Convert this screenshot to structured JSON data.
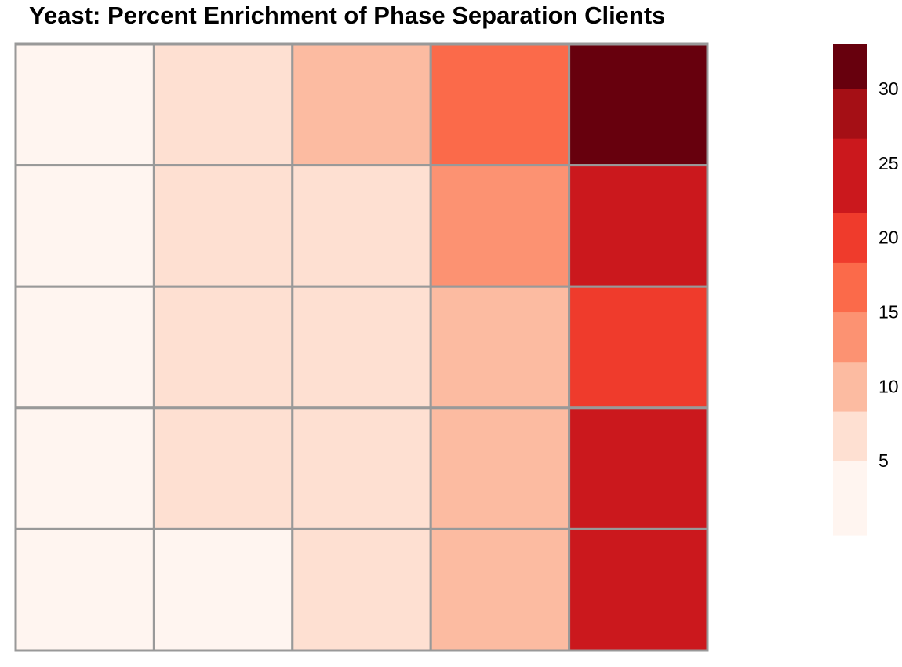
{
  "chart_data": {
    "type": "heatmap",
    "title": "Yeast: Percent Enrichment of Phase Separation Clients",
    "rows": 5,
    "cols": 5,
    "values": [
      [
        1,
        5,
        10,
        17,
        32
      ],
      [
        1,
        5,
        5,
        14,
        25
      ],
      [
        1,
        5,
        5,
        10,
        21
      ],
      [
        1,
        5,
        5,
        10,
        25
      ],
      [
        1,
        1,
        5,
        10,
        25
      ]
    ],
    "color_range": [
      0,
      33
    ],
    "legend": {
      "position": "right",
      "bins": [
        {
          "min": 0,
          "max": 5,
          "color": "#FFF5F0"
        },
        {
          "min": 5,
          "max": 8.33,
          "color": "#FEE0D2"
        },
        {
          "min": 8.33,
          "max": 11.67,
          "color": "#FCBBA1"
        },
        {
          "min": 11.67,
          "max": 15,
          "color": "#FC9272"
        },
        {
          "min": 15,
          "max": 18.33,
          "color": "#FB6A4A"
        },
        {
          "min": 18.33,
          "max": 21.67,
          "color": "#EF3B2C"
        },
        {
          "min": 21.67,
          "max": 26.67,
          "color": "#CB181D"
        },
        {
          "min": 26.67,
          "max": 30,
          "color": "#A50F15"
        },
        {
          "min": 30,
          "max": 33,
          "color": "#67000D"
        }
      ],
      "ticks": [
        5,
        10,
        15,
        20,
        25,
        30
      ],
      "tick_labels": [
        "5",
        "10",
        "15",
        "20",
        "25",
        "30"
      ]
    },
    "cell_border_color": "#999999"
  }
}
